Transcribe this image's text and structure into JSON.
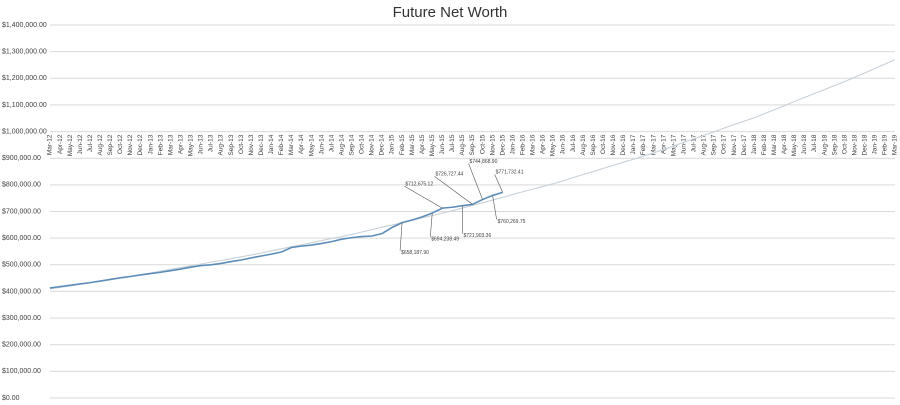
{
  "chart_data": {
    "type": "line",
    "title": "Future Net Worth",
    "categories": [
      "Mar-12",
      "Apr-12",
      "May-12",
      "Jun-12",
      "Jul-12",
      "Aug-12",
      "Sep-12",
      "Oct-12",
      "Nov-12",
      "Dec-12",
      "Jan-13",
      "Feb-13",
      "Mar-13",
      "Apr-13",
      "May-13",
      "Jun-13",
      "Jul-13",
      "Aug-13",
      "Sep-13",
      "Oct-13",
      "Nov-13",
      "Dec-13",
      "Jan-14",
      "Feb-14",
      "Mar-14",
      "Apr-14",
      "May-14",
      "Jun-14",
      "Jul-14",
      "Aug-14",
      "Sep-14",
      "Oct-14",
      "Nov-14",
      "Dec-14",
      "Jan-15",
      "Feb-15",
      "Mar-15",
      "Apr-15",
      "May-15",
      "Jun-15",
      "Jul-15",
      "Aug-15",
      "Sep-15",
      "Oct-15",
      "Nov-15",
      "Dec-15",
      "Jan-16",
      "Feb-16",
      "Mar-16",
      "Apr-16",
      "May-16",
      "Jun-16",
      "Jul-16",
      "Aug-16",
      "Sep-16",
      "Oct-16",
      "Nov-16",
      "Dec-16",
      "Jan-17",
      "Feb-17",
      "Mar-17",
      "Apr-17",
      "May-17",
      "Jun-17",
      "Jul-17",
      "Aug-17",
      "Sep-17",
      "Oct-17",
      "Nov-17",
      "Dec-17",
      "Jan-18",
      "Feb-18",
      "Mar-18",
      "Apr-18",
      "May-18",
      "Jun-18",
      "Jul-18",
      "Aug-18",
      "Sep-18",
      "Oct-18",
      "Nov-18",
      "Dec-18",
      "Jan-19",
      "Feb-19",
      "Mar-19"
    ],
    "series": [
      {
        "color": "#5b8db8",
        "values": [
          413000,
          418000,
          423000,
          428000,
          433000,
          439000,
          445000,
          451000,
          456000,
          462000,
          467000,
          472000,
          478000,
          484000,
          491000,
          497000,
          500000,
          505000,
          512000,
          518000,
          526000,
          533000,
          540000,
          548000,
          565000,
          570000,
          574000,
          580000,
          587000,
          596000,
          602000,
          606000,
          608000,
          617000,
          640000,
          658187.9,
          668000,
          680000,
          694238.49,
          712675.12,
          716000,
          721903.36,
          726727.44,
          744868.9,
          760269.75,
          771732.41,
          null,
          null,
          null,
          null,
          null,
          null,
          null,
          null,
          null,
          null,
          null,
          null,
          null,
          null,
          null,
          null,
          null,
          null,
          null,
          null,
          null,
          null,
          null,
          null,
          null,
          null,
          null,
          null,
          null,
          null,
          null,
          null,
          null,
          null,
          null,
          null,
          null,
          null,
          null
        ],
        "value_labels": [
          null,
          null,
          null,
          null,
          null,
          null,
          null,
          null,
          null,
          null,
          null,
          null,
          null,
          null,
          null,
          null,
          null,
          null,
          null,
          null,
          null,
          null,
          null,
          null,
          null,
          null,
          null,
          null,
          null,
          null,
          null,
          null,
          null,
          null,
          null,
          "$658,187.90",
          null,
          null,
          "$694,238.49",
          "$712,675.12",
          null,
          "$721,903.36",
          "$726,727.44",
          "$744,868.90",
          "$760,269.75",
          "$771,732.41",
          null,
          null,
          null,
          null,
          null,
          null,
          null,
          null,
          null,
          null,
          null,
          null,
          null,
          null,
          null,
          null,
          null,
          null,
          null,
          null,
          null,
          null,
          null,
          null,
          null,
          null,
          null,
          null,
          null,
          null,
          null,
          null,
          null,
          null,
          null,
          null,
          null,
          null,
          null
        ]
      },
      {
        "color": "#c8d0d8",
        "values": [
          410000,
          415000,
          421000,
          427000,
          433000,
          439000,
          444000,
          451000,
          457000,
          463000,
          469000,
          476000,
          483000,
          489000,
          496000,
          503000,
          510000,
          516000,
          523000,
          530000,
          537000,
          544000,
          552000,
          560000,
          568000,
          575000,
          583000,
          591000,
          599000,
          606000,
          614000,
          623000,
          632000,
          641000,
          649000,
          658000,
          667000,
          676000,
          685000,
          694000,
          703000,
          713000,
          723000,
          733000,
          743000,
          753000,
          764000,
          774000,
          784000,
          794000,
          804000,
          815000,
          827000,
          839000,
          850000,
          862000,
          873000,
          885000,
          896000,
          908000,
          920000,
          933000,
          946000,
          960000,
          973000,
          986000,
          999000,
          1013000,
          1026000,
          1039000,
          1052000,
          1067000,
          1082000,
          1097000,
          1113000,
          1128000,
          1143000,
          1158000,
          1173000,
          1188000,
          1204000,
          1220000,
          1237000,
          1253000,
          1270000
        ]
      }
    ],
    "ylim": [
      0,
      1400000
    ],
    "yticks": [
      {
        "value": 0,
        "label": "$0.00"
      },
      {
        "value": 100000,
        "label": "$100,000.00"
      },
      {
        "value": 200000,
        "label": "$200,000.00"
      },
      {
        "value": 300000,
        "label": "$300,000.00"
      },
      {
        "value": 400000,
        "label": "$400,000.00"
      },
      {
        "value": 500000,
        "label": "$500,000.00"
      },
      {
        "value": 600000,
        "label": "$600,000.00"
      },
      {
        "value": 700000,
        "label": "$700,000.00"
      },
      {
        "value": 800000,
        "label": "$800,000.00"
      },
      {
        "value": 900000,
        "label": "$900,000.00"
      },
      {
        "value": 1000000,
        "label": "$1,000,000.00"
      },
      {
        "value": 1100000,
        "label": "$1,100,000.00"
      },
      {
        "value": 1200000,
        "label": "$1,200,000.00"
      },
      {
        "value": 1300000,
        "label": "$1,300,000.00"
      },
      {
        "value": 1400000,
        "label": "$1,400,000.00"
      }
    ],
    "grid": true
  }
}
